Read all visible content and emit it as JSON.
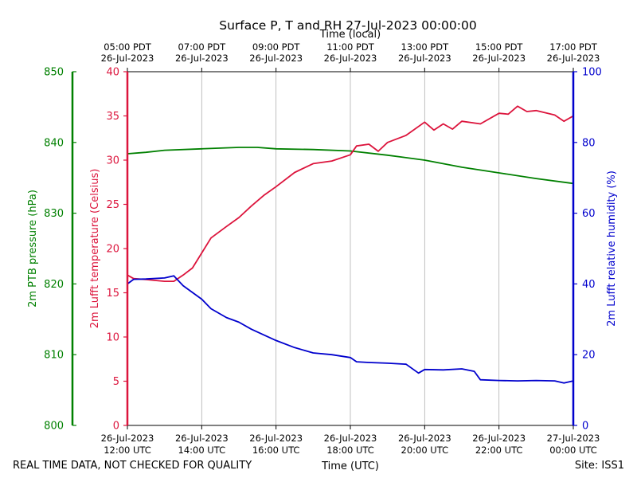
{
  "chart_data": {
    "type": "line",
    "title": "Surface P, T and RH 27-Jul-2023 00:00:00",
    "top_axis_label": "Time (local)",
    "xlabel": "Time (UTC)",
    "x_ticks_utc": [
      [
        "26-Jul-2023",
        "12:00 UTC"
      ],
      [
        "26-Jul-2023",
        "14:00 UTC"
      ],
      [
        "26-Jul-2023",
        "16:00 UTC"
      ],
      [
        "26-Jul-2023",
        "18:00 UTC"
      ],
      [
        "26-Jul-2023",
        "20:00 UTC"
      ],
      [
        "26-Jul-2023",
        "22:00 UTC"
      ],
      [
        "27-Jul-2023",
        "00:00 UTC"
      ]
    ],
    "x_ticks_local": [
      [
        "05:00 PDT",
        "26-Jul-2023"
      ],
      [
        "07:00 PDT",
        "26-Jul-2023"
      ],
      [
        "09:00 PDT",
        "26-Jul-2023"
      ],
      [
        "11:00 PDT",
        "26-Jul-2023"
      ],
      [
        "13:00 PDT",
        "26-Jul-2023"
      ],
      [
        "15:00 PDT",
        "26-Jul-2023"
      ],
      [
        "17:00 PDT",
        "26-Jul-2023"
      ]
    ],
    "xlim": [
      "2023-07-26 12:00 UTC",
      "2023-07-27 00:00 UTC"
    ],
    "grid": "vertical",
    "y_axes": [
      {
        "label": "2m PTB pressure (hPa)",
        "ylim": [
          800,
          850
        ],
        "ticks": [
          "800",
          "810",
          "820",
          "830",
          "840",
          "850"
        ],
        "color": "#008000"
      },
      {
        "label": "2m Lufft temperature (Celsius)",
        "ylim": [
          0,
          40
        ],
        "ticks": [
          "0",
          "5",
          "10",
          "15",
          "20",
          "25",
          "30",
          "35",
          "40"
        ],
        "color": "#dc143c"
      },
      {
        "label": "2m Lufft relative humidity (%)",
        "ylim": [
          0,
          100
        ],
        "ticks": [
          "0",
          "20",
          "40",
          "60",
          "80",
          "100"
        ],
        "color": "#0000cd"
      }
    ],
    "series": [
      {
        "axis": "pressure",
        "color": "#008000",
        "x": [
          "12:00",
          "12:30",
          "13:00",
          "14:00",
          "15:00",
          "15:30",
          "16:00",
          "17:00",
          "18:00",
          "19:00",
          "20:00",
          "21:00",
          "22:00",
          "23:00",
          "00:00"
        ],
        "values": [
          838.4,
          838.6,
          838.9,
          839.1,
          839.3,
          839.3,
          839.1,
          839.0,
          838.8,
          838.2,
          837.5,
          836.5,
          835.7,
          834.9,
          834.2
        ]
      },
      {
        "axis": "temperature",
        "color": "#dc143c",
        "x": [
          "12:00",
          "12:10",
          "12:30",
          "13:00",
          "13:15",
          "13:30",
          "13:45",
          "14:00",
          "14:15",
          "14:40",
          "15:00",
          "15:20",
          "15:40",
          "16:00",
          "16:30",
          "17:00",
          "17:30",
          "18:00",
          "18:10",
          "18:30",
          "18:45",
          "19:00",
          "19:30",
          "20:00",
          "20:15",
          "20:30",
          "20:45",
          "21:00",
          "21:30",
          "22:00",
          "22:15",
          "22:30",
          "22:45",
          "23:00",
          "23:30",
          "23:45",
          "00:00"
        ],
        "values": [
          17.0,
          16.6,
          16.5,
          16.3,
          16.3,
          17.0,
          17.8,
          19.5,
          21.2,
          22.5,
          23.5,
          24.8,
          26.0,
          27.0,
          28.6,
          29.6,
          29.9,
          30.6,
          31.6,
          31.8,
          31.0,
          32.0,
          32.8,
          34.3,
          33.4,
          34.1,
          33.5,
          34.4,
          34.1,
          35.3,
          35.2,
          36.1,
          35.5,
          35.6,
          35.1,
          34.4,
          35.0
        ]
      },
      {
        "axis": "humidity",
        "color": "#0000cd",
        "x": [
          "12:00",
          "12:10",
          "12:30",
          "13:00",
          "13:15",
          "13:30",
          "13:45",
          "14:00",
          "14:15",
          "14:40",
          "15:00",
          "15:20",
          "15:40",
          "16:00",
          "16:30",
          "17:00",
          "17:30",
          "18:00",
          "18:10",
          "18:30",
          "19:00",
          "19:30",
          "19:50",
          "20:00",
          "20:30",
          "21:00",
          "21:20",
          "21:30",
          "22:00",
          "22:30",
          "23:00",
          "23:30",
          "23:45",
          "00:00"
        ],
        "values": [
          40.0,
          41.3,
          41.4,
          41.7,
          42.3,
          39.5,
          37.6,
          35.7,
          33.0,
          30.5,
          29.2,
          27.2,
          25.6,
          24.0,
          22.0,
          20.5,
          20.0,
          19.2,
          18.0,
          17.8,
          17.6,
          17.3,
          14.8,
          15.8,
          15.7,
          16.0,
          15.3,
          12.9,
          12.7,
          12.6,
          12.7,
          12.6,
          12.0,
          12.6
        ]
      }
    ]
  },
  "footer": {
    "disclaimer": "REAL TIME DATA, NOT CHECKED FOR QUALITY",
    "site": "Site: ISS1"
  }
}
